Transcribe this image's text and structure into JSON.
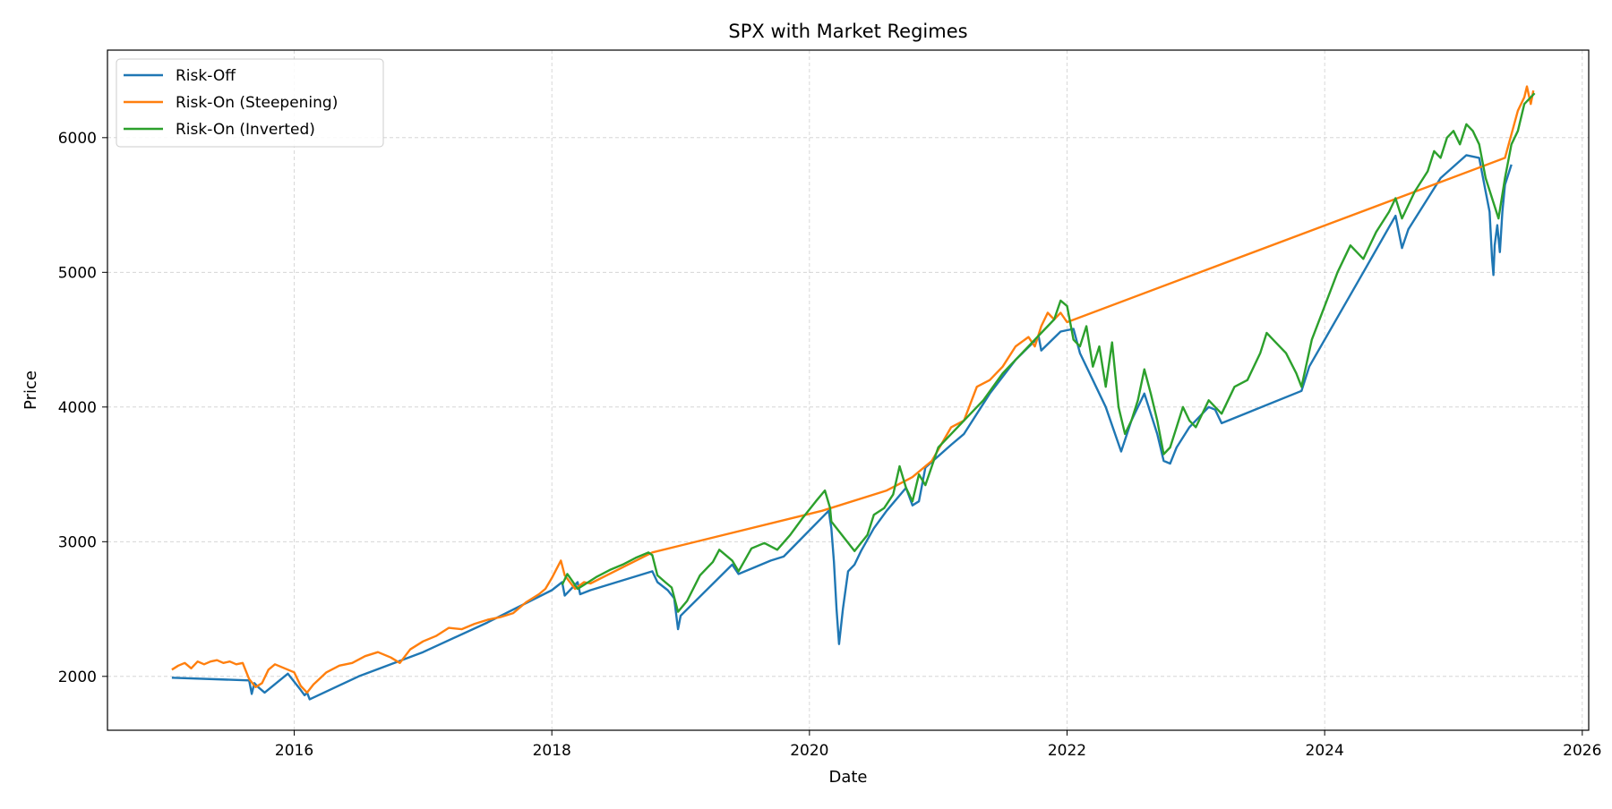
{
  "chart_data": {
    "type": "line",
    "title": "SPX with Market Regimes",
    "xlabel": "Date",
    "ylabel": "Price",
    "xlim": [
      2014.55,
      2026.05
    ],
    "ylim": [
      1600,
      6650
    ],
    "x_ticks": [
      2016,
      2018,
      2020,
      2022,
      2024,
      2026
    ],
    "x_tick_labels": [
      "2016",
      "2018",
      "2020",
      "2022",
      "2024",
      "2026"
    ],
    "y_ticks": [
      2000,
      3000,
      4000,
      5000,
      6000
    ],
    "y_tick_labels": [
      "2000",
      "3000",
      "4000",
      "5000",
      "6000"
    ],
    "grid": true,
    "legend_position": "top-left",
    "series": [
      {
        "name": "Risk-Off",
        "color": "#1f77b4",
        "points": [
          [
            2015.05,
            1990
          ],
          [
            2015.65,
            1970
          ],
          [
            2015.67,
            1870
          ],
          [
            2015.69,
            1950
          ],
          [
            2015.72,
            1920
          ],
          [
            2015.77,
            1880
          ],
          [
            2015.95,
            2020
          ],
          [
            2016.05,
            1900
          ],
          [
            2016.08,
            1860
          ],
          [
            2016.1,
            1880
          ],
          [
            2016.12,
            1830
          ],
          [
            2016.5,
            2000
          ],
          [
            2017.0,
            2180
          ],
          [
            2017.5,
            2400
          ],
          [
            2018.0,
            2640
          ],
          [
            2018.08,
            2700
          ],
          [
            2018.1,
            2600
          ],
          [
            2018.2,
            2700
          ],
          [
            2018.22,
            2610
          ],
          [
            2018.3,
            2640
          ],
          [
            2018.78,
            2780
          ],
          [
            2018.82,
            2700
          ],
          [
            2018.9,
            2640
          ],
          [
            2018.95,
            2580
          ],
          [
            2018.98,
            2350
          ],
          [
            2019.0,
            2450
          ],
          [
            2019.4,
            2830
          ],
          [
            2019.45,
            2760
          ],
          [
            2019.7,
            2860
          ],
          [
            2019.8,
            2890
          ],
          [
            2020.15,
            3230
          ],
          [
            2020.17,
            3100
          ],
          [
            2020.19,
            2850
          ],
          [
            2020.21,
            2500
          ],
          [
            2020.23,
            2240
          ],
          [
            2020.26,
            2500
          ],
          [
            2020.3,
            2780
          ],
          [
            2020.35,
            2830
          ],
          [
            2020.4,
            2930
          ],
          [
            2020.5,
            3100
          ],
          [
            2020.6,
            3230
          ],
          [
            2020.75,
            3400
          ],
          [
            2020.8,
            3270
          ],
          [
            2020.85,
            3300
          ],
          [
            2020.9,
            3550
          ],
          [
            2021.1,
            3720
          ],
          [
            2021.2,
            3800
          ],
          [
            2021.4,
            4100
          ],
          [
            2021.6,
            4350
          ],
          [
            2021.78,
            4520
          ],
          [
            2021.8,
            4420
          ],
          [
            2021.95,
            4560
          ],
          [
            2022.05,
            4580
          ],
          [
            2022.1,
            4400
          ],
          [
            2022.2,
            4200
          ],
          [
            2022.3,
            4000
          ],
          [
            2022.42,
            3670
          ],
          [
            2022.5,
            3900
          ],
          [
            2022.6,
            4100
          ],
          [
            2022.7,
            3800
          ],
          [
            2022.75,
            3600
          ],
          [
            2022.8,
            3580
          ],
          [
            2022.85,
            3700
          ],
          [
            2022.95,
            3850
          ],
          [
            2023.05,
            3950
          ],
          [
            2023.1,
            4000
          ],
          [
            2023.15,
            3980
          ],
          [
            2023.2,
            3880
          ],
          [
            2023.82,
            4120
          ],
          [
            2023.88,
            4300
          ],
          [
            2024.3,
            5000
          ],
          [
            2024.55,
            5420
          ],
          [
            2024.6,
            5180
          ],
          [
            2024.65,
            5320
          ],
          [
            2024.9,
            5700
          ],
          [
            2025.1,
            5870
          ],
          [
            2025.2,
            5850
          ],
          [
            2025.25,
            5600
          ],
          [
            2025.28,
            5450
          ],
          [
            2025.3,
            5100
          ],
          [
            2025.31,
            4980
          ],
          [
            2025.32,
            5200
          ],
          [
            2025.34,
            5350
          ],
          [
            2025.36,
            5150
          ],
          [
            2025.38,
            5450
          ],
          [
            2025.4,
            5650
          ],
          [
            2025.45,
            5800
          ]
        ]
      },
      {
        "name": "Risk-On (Steepening)",
        "color": "#ff7f0e",
        "points": [
          [
            2015.05,
            2050
          ],
          [
            2015.1,
            2080
          ],
          [
            2015.15,
            2100
          ],
          [
            2015.2,
            2060
          ],
          [
            2015.25,
            2110
          ],
          [
            2015.3,
            2090
          ],
          [
            2015.35,
            2110
          ],
          [
            2015.4,
            2120
          ],
          [
            2015.45,
            2100
          ],
          [
            2015.5,
            2110
          ],
          [
            2015.55,
            2090
          ],
          [
            2015.6,
            2100
          ],
          [
            2015.65,
            1980
          ],
          [
            2015.7,
            1920
          ],
          [
            2015.75,
            1950
          ],
          [
            2015.8,
            2050
          ],
          [
            2015.85,
            2090
          ],
          [
            2015.9,
            2070
          ],
          [
            2015.95,
            2050
          ],
          [
            2016.0,
            2030
          ],
          [
            2016.05,
            1930
          ],
          [
            2016.1,
            1880
          ],
          [
            2016.15,
            1940
          ],
          [
            2016.25,
            2030
          ],
          [
            2016.35,
            2080
          ],
          [
            2016.45,
            2100
          ],
          [
            2016.55,
            2150
          ],
          [
            2016.65,
            2180
          ],
          [
            2016.75,
            2140
          ],
          [
            2016.82,
            2100
          ],
          [
            2016.9,
            2200
          ],
          [
            2017.0,
            2260
          ],
          [
            2017.1,
            2300
          ],
          [
            2017.2,
            2360
          ],
          [
            2017.3,
            2350
          ],
          [
            2017.4,
            2390
          ],
          [
            2017.5,
            2420
          ],
          [
            2017.6,
            2440
          ],
          [
            2017.7,
            2470
          ],
          [
            2017.8,
            2550
          ],
          [
            2017.9,
            2610
          ],
          [
            2017.95,
            2650
          ],
          [
            2018.0,
            2730
          ],
          [
            2018.07,
            2860
          ],
          [
            2018.1,
            2750
          ],
          [
            2018.18,
            2650
          ],
          [
            2018.25,
            2700
          ],
          [
            2018.3,
            2690
          ],
          [
            2018.78,
            2920
          ],
          [
            2020.1,
            3230
          ],
          [
            2020.6,
            3380
          ],
          [
            2020.8,
            3480
          ],
          [
            2020.95,
            3600
          ],
          [
            2021.1,
            3850
          ],
          [
            2021.2,
            3900
          ],
          [
            2021.3,
            4150
          ],
          [
            2021.4,
            4200
          ],
          [
            2021.5,
            4300
          ],
          [
            2021.6,
            4450
          ],
          [
            2021.7,
            4520
          ],
          [
            2021.75,
            4450
          ],
          [
            2021.8,
            4600
          ],
          [
            2021.85,
            4700
          ],
          [
            2021.9,
            4650
          ],
          [
            2021.95,
            4700
          ],
          [
            2022.0,
            4630
          ],
          [
            2025.4,
            5850
          ],
          [
            2025.5,
            6200
          ],
          [
            2025.55,
            6300
          ],
          [
            2025.57,
            6380
          ],
          [
            2025.6,
            6250
          ],
          [
            2025.62,
            6350
          ]
        ]
      },
      {
        "name": "Risk-On (Inverted)",
        "color": "#2ca02c",
        "points": [
          [
            2018.08,
            2680
          ],
          [
            2018.12,
            2760
          ],
          [
            2018.15,
            2720
          ],
          [
            2018.2,
            2650
          ],
          [
            2018.25,
            2680
          ],
          [
            2018.35,
            2740
          ],
          [
            2018.45,
            2790
          ],
          [
            2018.55,
            2830
          ],
          [
            2018.65,
            2880
          ],
          [
            2018.75,
            2920
          ],
          [
            2018.78,
            2900
          ],
          [
            2018.82,
            2750
          ],
          [
            2018.88,
            2700
          ],
          [
            2018.93,
            2660
          ],
          [
            2018.98,
            2480
          ],
          [
            2019.05,
            2560
          ],
          [
            2019.15,
            2750
          ],
          [
            2019.25,
            2850
          ],
          [
            2019.3,
            2940
          ],
          [
            2019.4,
            2860
          ],
          [
            2019.45,
            2780
          ],
          [
            2019.55,
            2950
          ],
          [
            2019.65,
            2990
          ],
          [
            2019.75,
            2940
          ],
          [
            2019.85,
            3050
          ],
          [
            2019.95,
            3180
          ],
          [
            2020.05,
            3300
          ],
          [
            2020.12,
            3380
          ],
          [
            2020.16,
            3250
          ],
          [
            2020.17,
            3150
          ],
          [
            2020.35,
            2930
          ],
          [
            2020.45,
            3050
          ],
          [
            2020.5,
            3200
          ],
          [
            2020.58,
            3250
          ],
          [
            2020.65,
            3350
          ],
          [
            2020.7,
            3560
          ],
          [
            2020.75,
            3400
          ],
          [
            2020.8,
            3300
          ],
          [
            2020.85,
            3500
          ],
          [
            2020.9,
            3420
          ],
          [
            2021.0,
            3700
          ],
          [
            2021.1,
            3800
          ],
          [
            2021.2,
            3900
          ],
          [
            2021.35,
            4050
          ],
          [
            2021.5,
            4250
          ],
          [
            2021.65,
            4400
          ],
          [
            2021.8,
            4550
          ],
          [
            2021.9,
            4650
          ],
          [
            2021.95,
            4790
          ],
          [
            2022.0,
            4750
          ],
          [
            2022.05,
            4500
          ],
          [
            2022.1,
            4450
          ],
          [
            2022.15,
            4600
          ],
          [
            2022.2,
            4300
          ],
          [
            2022.25,
            4450
          ],
          [
            2022.3,
            4150
          ],
          [
            2022.35,
            4480
          ],
          [
            2022.4,
            4000
          ],
          [
            2022.45,
            3800
          ],
          [
            2022.5,
            3900
          ],
          [
            2022.55,
            4050
          ],
          [
            2022.6,
            4280
          ],
          [
            2022.65,
            4100
          ],
          [
            2022.7,
            3900
          ],
          [
            2022.75,
            3650
          ],
          [
            2022.8,
            3700
          ],
          [
            2022.85,
            3850
          ],
          [
            2022.9,
            4000
          ],
          [
            2022.95,
            3900
          ],
          [
            2023.0,
            3850
          ],
          [
            2023.1,
            4050
          ],
          [
            2023.2,
            3950
          ],
          [
            2023.3,
            4150
          ],
          [
            2023.4,
            4200
          ],
          [
            2023.5,
            4400
          ],
          [
            2023.55,
            4550
          ],
          [
            2023.6,
            4500
          ],
          [
            2023.7,
            4400
          ],
          [
            2023.78,
            4250
          ],
          [
            2023.82,
            4150
          ],
          [
            2023.9,
            4500
          ],
          [
            2024.0,
            4750
          ],
          [
            2024.1,
            5000
          ],
          [
            2024.2,
            5200
          ],
          [
            2024.3,
            5100
          ],
          [
            2024.4,
            5300
          ],
          [
            2024.5,
            5450
          ],
          [
            2024.55,
            5550
          ],
          [
            2024.6,
            5400
          ],
          [
            2024.7,
            5600
          ],
          [
            2024.8,
            5750
          ],
          [
            2024.85,
            5900
          ],
          [
            2024.9,
            5850
          ],
          [
            2024.95,
            6000
          ],
          [
            2025.0,
            6050
          ],
          [
            2025.05,
            5950
          ],
          [
            2025.1,
            6100
          ],
          [
            2025.15,
            6050
          ],
          [
            2025.2,
            5950
          ],
          [
            2025.25,
            5700
          ],
          [
            2025.35,
            5400
          ],
          [
            2025.4,
            5700
          ],
          [
            2025.45,
            5950
          ],
          [
            2025.5,
            6050
          ],
          [
            2025.55,
            6250
          ],
          [
            2025.6,
            6300
          ],
          [
            2025.63,
            6330
          ]
        ]
      }
    ]
  }
}
